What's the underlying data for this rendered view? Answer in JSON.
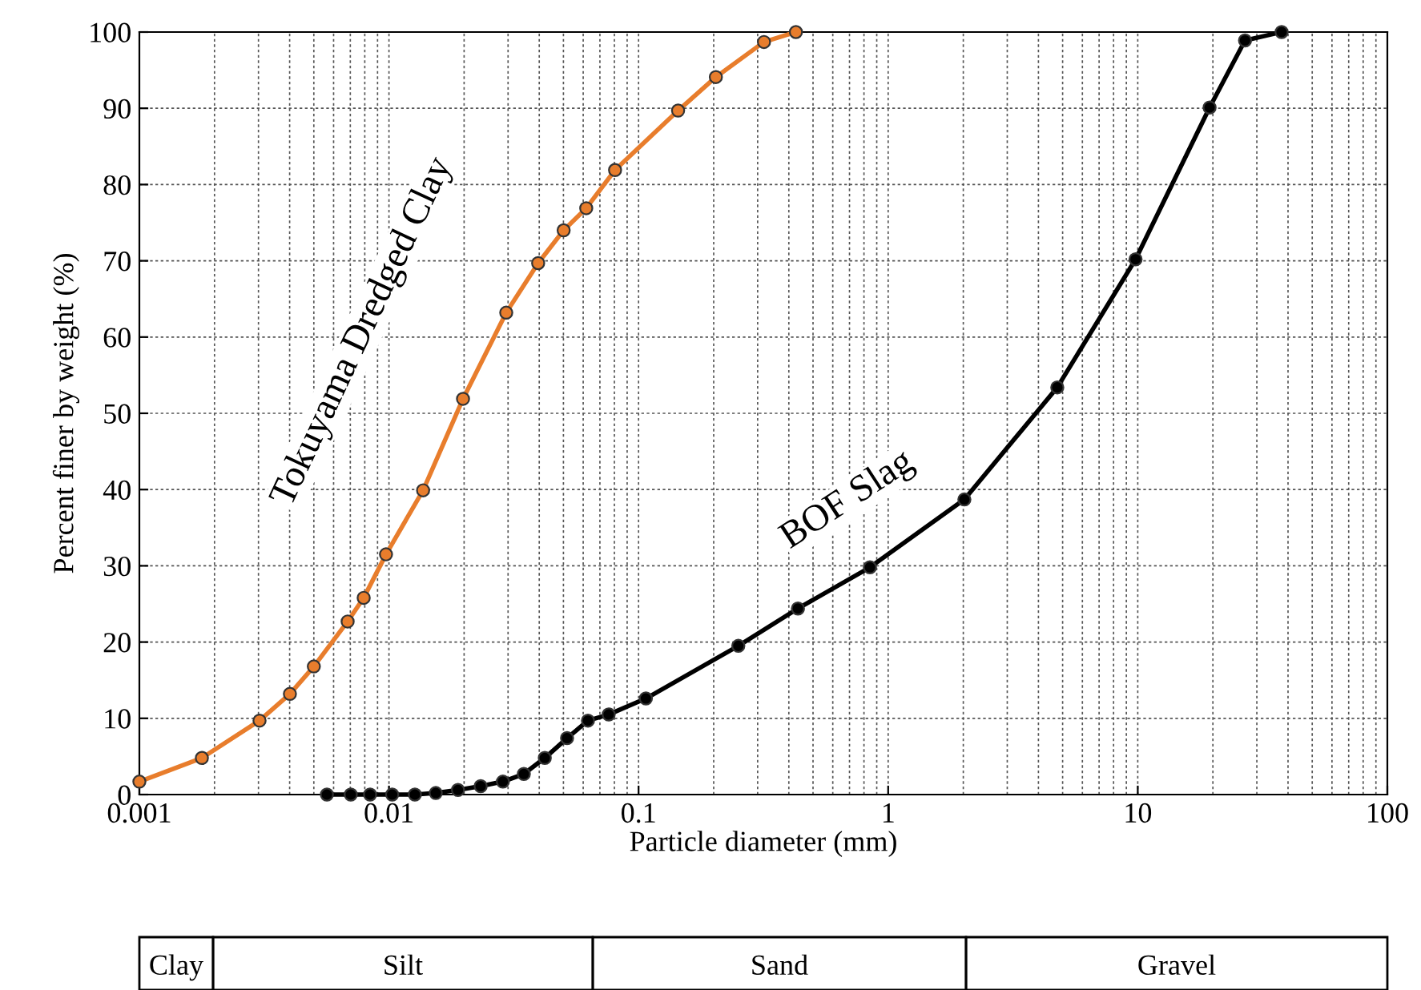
{
  "chart_data": {
    "type": "line",
    "xlabel": "Particle diameter (mm)",
    "ylabel": "Percent finer by weight (%)",
    "log": "x",
    "xlim": [
      0.001,
      100
    ],
    "xticks": [
      0.001,
      0.01,
      0.1,
      1,
      10,
      100
    ],
    "ylim": [
      0,
      100
    ],
    "yticks": [
      0,
      10,
      20,
      30,
      40,
      50,
      60,
      70,
      80,
      90,
      100
    ],
    "grid": true,
    "marker": "circle",
    "line_style": "solid",
    "series": [
      {
        "name": "Tokuyama Dredged Clay",
        "color": "#e87d2c",
        "x": [
          0.001,
          0.00178,
          0.00303,
          0.00401,
          0.005,
          0.00683,
          0.00792,
          0.00973,
          0.0137,
          0.0198,
          0.0295,
          0.0396,
          0.0501,
          0.0617,
          0.0805,
          0.144,
          0.204,
          0.318,
          0.427
        ],
        "values": [
          1.7,
          4.8,
          9.7,
          13.2,
          16.8,
          22.7,
          25.8,
          31.5,
          39.9,
          51.9,
          63.2,
          69.7,
          74,
          76.9,
          81.9,
          89.7,
          94.1,
          98.7,
          100
        ]
      },
      {
        "name": "BOF Slag",
        "color": "#000000",
        "x": [
          0.00564,
          0.00703,
          0.0084,
          0.0103,
          0.0127,
          0.0154,
          0.0189,
          0.0233,
          0.0286,
          0.0347,
          0.0421,
          0.0517,
          0.0627,
          0.0759,
          0.107,
          0.251,
          0.435,
          0.845,
          2.02,
          4.76,
          9.8,
          19.4,
          26.9,
          37.7
        ],
        "values": [
          0,
          0,
          0,
          0,
          0,
          0.2,
          0.6,
          1.1,
          1.7,
          2.7,
          4.8,
          7.4,
          9.7,
          10.5,
          12.6,
          19.5,
          24.4,
          29.8,
          38.7,
          53.4,
          70.2,
          90.1,
          98.9,
          100
        ]
      }
    ],
    "annotations": [
      "Clay",
      "Silt",
      "Sand",
      "Gravel"
    ]
  }
}
